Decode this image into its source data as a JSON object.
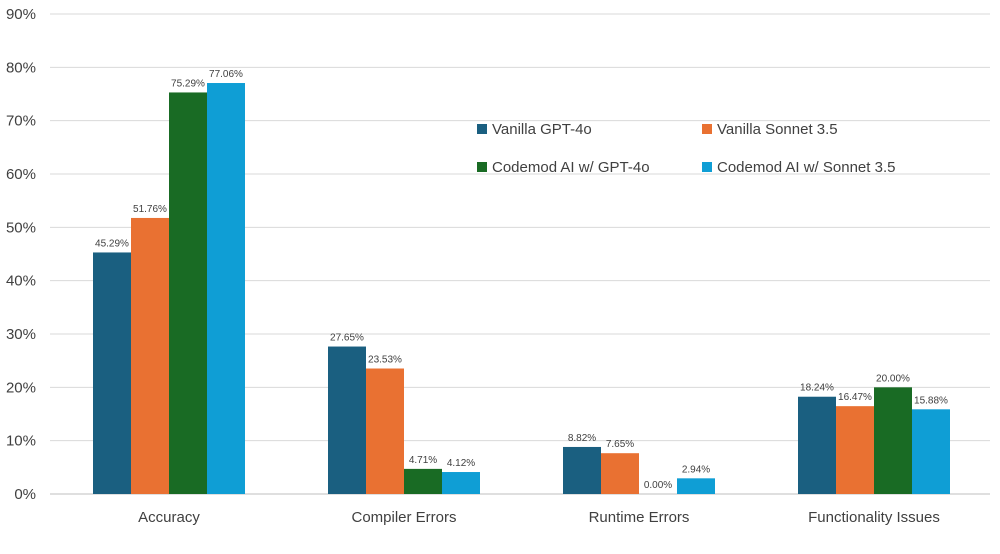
{
  "chart_data": {
    "type": "bar",
    "title": "",
    "xlabel": "",
    "ylabel": "",
    "categories": [
      "Accuracy",
      "Compiler Errors",
      "Runtime Errors",
      "Functionality Issues"
    ],
    "series": [
      {
        "name": "Vanilla GPT-4o",
        "color": "#1a5f80",
        "values": [
          45.29,
          27.65,
          8.82,
          18.24
        ]
      },
      {
        "name": "Vanilla Sonnet 3.5",
        "color": "#e97132",
        "values": [
          51.76,
          23.53,
          7.65,
          16.47
        ]
      },
      {
        "name": "Codemod AI w/ GPT-4o",
        "color": "#196b24",
        "values": [
          75.29,
          4.71,
          0.0,
          20.0
        ]
      },
      {
        "name": "Codemod AI w/ Sonnet 3.5",
        "color": "#0f9ed5",
        "values": [
          77.06,
          4.12,
          2.94,
          15.88
        ]
      }
    ],
    "ylim": [
      0,
      90
    ],
    "yticks": [
      0,
      10,
      20,
      30,
      40,
      50,
      60,
      70,
      80,
      90
    ],
    "ytick_labels": [
      "0%",
      "10%",
      "20%",
      "30%",
      "40%",
      "50%",
      "60%",
      "70%",
      "80%",
      "90%"
    ],
    "data_label_suffix": "%",
    "grid": true,
    "legend_position": "upper-right-inside"
  }
}
